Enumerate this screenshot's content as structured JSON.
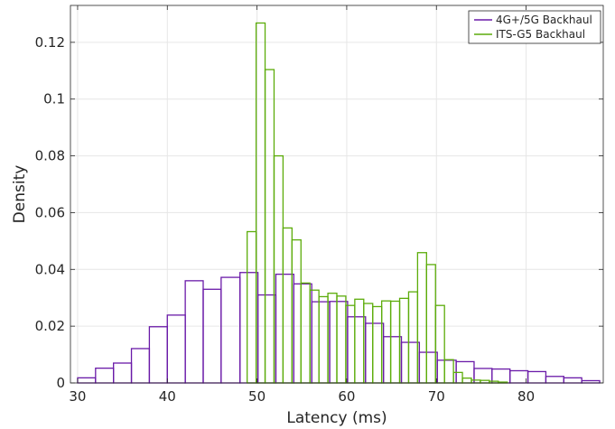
{
  "chart_data": {
    "type": "histogram",
    "xlabel": "Latency (ms)",
    "ylabel": "Density",
    "xlim": [
      29.2,
      88.6
    ],
    "ylim": [
      0,
      0.133
    ],
    "xticks": [
      30,
      40,
      50,
      60,
      70,
      80
    ],
    "yticks": [
      0,
      0.02,
      0.04,
      0.06,
      0.08,
      0.1,
      0.12
    ],
    "ytick_labels": [
      "0",
      "0.02",
      "0.04",
      "0.06",
      "0.08",
      "0.1",
      "0.12"
    ],
    "grid": true,
    "legend_position": "top-right",
    "series": [
      {
        "name": "4G+/5G Backhaul",
        "color": "#6a1aa8",
        "bin_edges": [
          30.0,
          32.0,
          34.0,
          36.0,
          38.0,
          40.0,
          42.0,
          44.0,
          46.0,
          48.1,
          50.1,
          52.1,
          54.1,
          56.1,
          58.1,
          60.1,
          62.1,
          64.1,
          66.1,
          68.1,
          70.1,
          72.2,
          74.2,
          76.2,
          78.2,
          80.2,
          82.2,
          84.2,
          86.2,
          88.2
        ],
        "densities": [
          0.0018,
          0.0052,
          0.007,
          0.0121,
          0.0198,
          0.0239,
          0.036,
          0.033,
          0.0372,
          0.0389,
          0.031,
          0.0383,
          0.0349,
          0.0286,
          0.0287,
          0.0233,
          0.021,
          0.0163,
          0.0143,
          0.0108,
          0.008,
          0.0075,
          0.0051,
          0.0049,
          0.0043,
          0.004,
          0.0023,
          0.0018,
          0.0008
        ]
      },
      {
        "name": "ITS-G5 Backhaul",
        "color": "#5cac0a",
        "bin_edges": [
          48.9,
          49.9,
          50.9,
          51.9,
          52.9,
          53.9,
          54.9,
          55.9,
          56.9,
          57.9,
          58.9,
          59.9,
          60.9,
          61.9,
          62.9,
          63.9,
          64.9,
          65.9,
          66.9,
          67.9,
          68.9,
          69.9,
          70.9,
          71.9,
          72.9,
          73.9,
          74.9,
          75.9,
          76.9,
          77.9
        ],
        "densities": [
          0.0533,
          0.1268,
          0.1104,
          0.08,
          0.0546,
          0.0504,
          0.0352,
          0.0327,
          0.0304,
          0.0316,
          0.0306,
          0.0273,
          0.0295,
          0.028,
          0.0269,
          0.0289,
          0.0288,
          0.0298,
          0.0321,
          0.0459,
          0.0417,
          0.0273,
          0.0082,
          0.0037,
          0.0017,
          0.001,
          0.0009,
          0.0006,
          0.0003
        ]
      }
    ]
  }
}
